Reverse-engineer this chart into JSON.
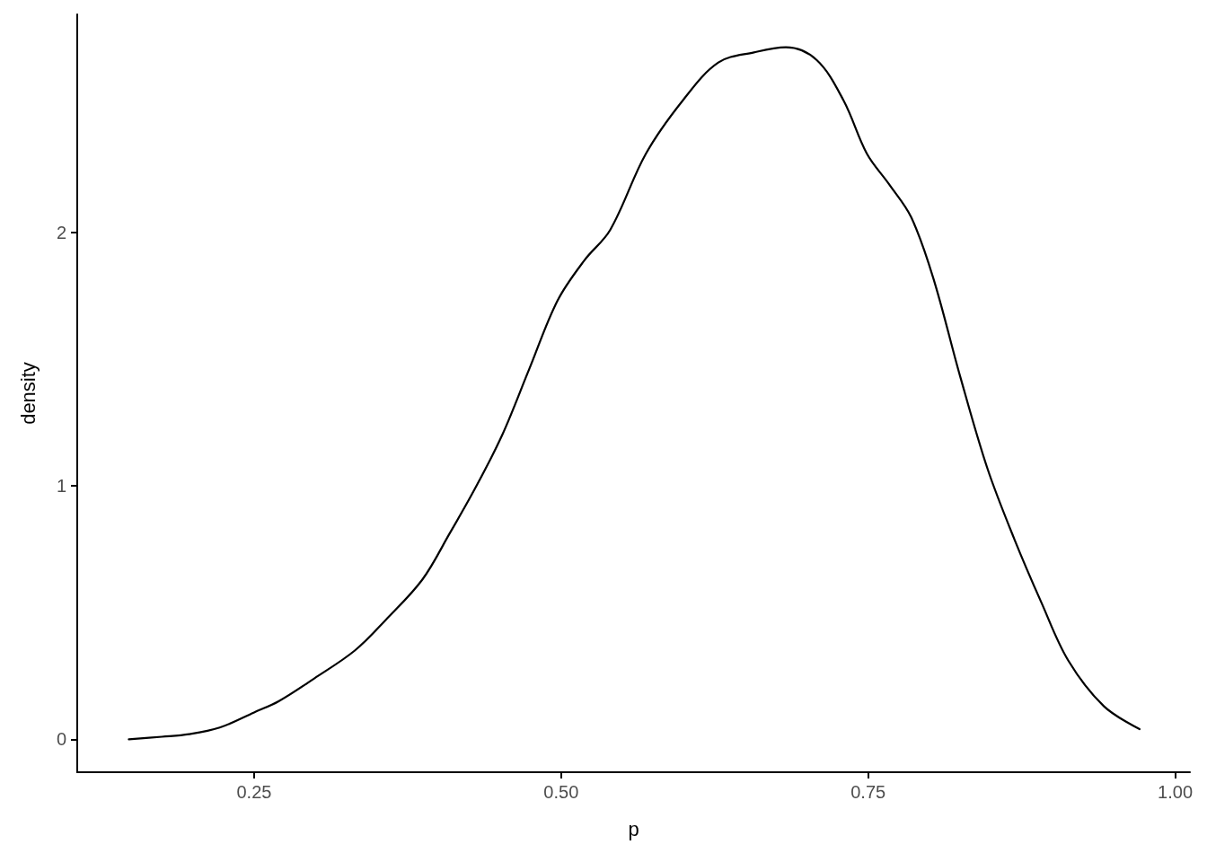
{
  "chart_data": {
    "type": "line",
    "xlabel": "p",
    "ylabel": "density",
    "x": [
      0.148,
      0.175,
      0.197,
      0.222,
      0.25,
      0.27,
      0.299,
      0.332,
      0.357,
      0.387,
      0.409,
      0.43,
      0.452,
      0.474,
      0.497,
      0.519,
      0.54,
      0.569,
      0.599,
      0.628,
      0.657,
      0.683,
      0.708,
      0.73,
      0.749,
      0.767,
      0.785,
      0.803,
      0.825,
      0.847,
      0.869,
      0.891,
      0.913,
      0.942,
      0.971
    ],
    "series": [
      {
        "color": "#000000",
        "values": [
          0,
          0.01,
          0.02,
          0.046,
          0.106,
          0.15,
          0.24,
          0.35,
          0.47,
          0.63,
          0.81,
          0.99,
          1.2,
          1.46,
          1.73,
          1.89,
          2.01,
          2.31,
          2.52,
          2.67,
          2.71,
          2.73,
          2.68,
          2.52,
          2.31,
          2.19,
          2.06,
          1.82,
          1.43,
          1.07,
          0.79,
          0.54,
          0.31,
          0.13,
          0.04
        ]
      }
    ],
    "xlim": [
      0.106,
      1.012
    ],
    "ylim": [
      -0.13,
      2.86
    ],
    "xticks": [
      {
        "value": 0.25,
        "label": "0.25"
      },
      {
        "value": 0.5,
        "label": "0.50"
      },
      {
        "value": 0.75,
        "label": "0.75"
      },
      {
        "value": 1,
        "label": "1.00"
      }
    ],
    "yticks": [
      0,
      1,
      2
    ],
    "grid": false,
    "marker": "none",
    "line_style": "solid"
  }
}
